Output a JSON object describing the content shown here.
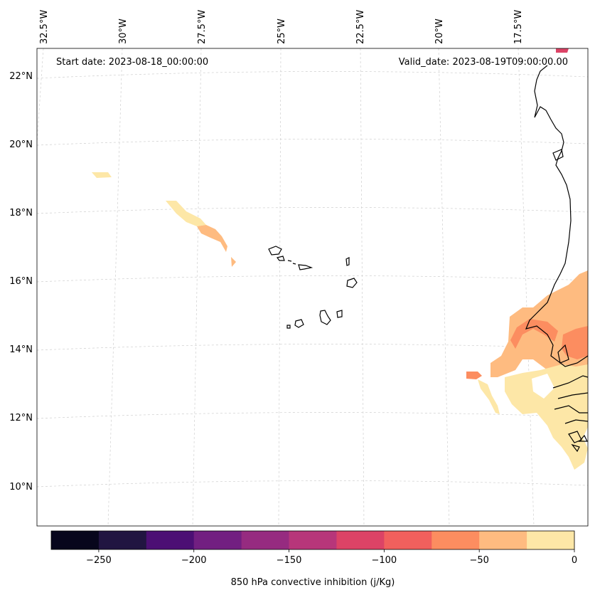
{
  "map": {
    "start_label": "Start date: 2023-08-18_00:00:00",
    "valid_label": "Valid_date: 2023-08-19T09:00:00.00",
    "lon_labels": [
      "32.5°W",
      "30°W",
      "27.5°W",
      "25°W",
      "22.5°W",
      "20°W",
      "17.5°W"
    ],
    "lat_labels": [
      "22°N",
      "20°N",
      "18°N",
      "16°N",
      "14°N",
      "12°N",
      "10°N"
    ]
  },
  "colorbar": {
    "title": "850 hPa convective inhibition (j/Kg)",
    "tick_labels": [
      "−250",
      "−200",
      "−150",
      "−100",
      "−50",
      "0"
    ],
    "levels": [
      -275,
      -250,
      -225,
      -200,
      -175,
      -150,
      -125,
      -100,
      -75,
      -50,
      -25,
      0
    ],
    "colors": [
      "#07061c",
      "#211541",
      "#4c0f74",
      "#721f81",
      "#962b80",
      "#b7367a",
      "#dc4366",
      "#f1605d",
      "#fc8d60",
      "#febb80",
      "#fde7a7"
    ]
  }
}
